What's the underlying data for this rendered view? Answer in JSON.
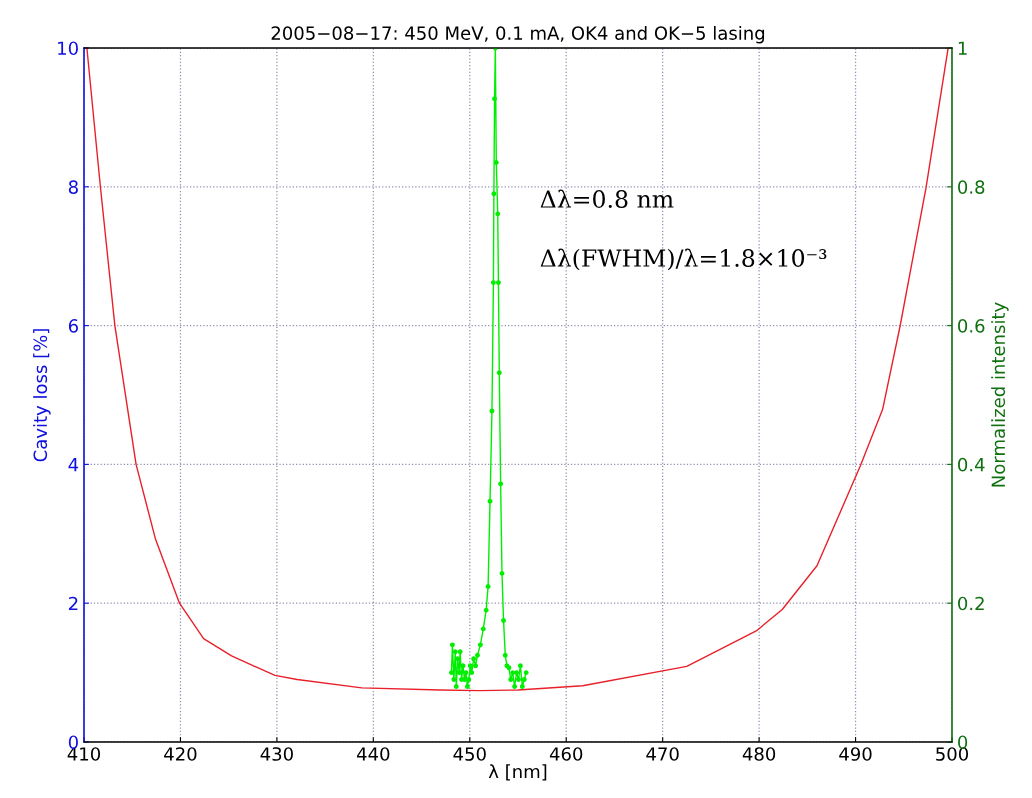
{
  "chart_data": {
    "type": "line",
    "title": "2005−08−17: 450 MeV, 0.1 mA, OK4 and OK−5 lasing",
    "xlabel": "λ [nm]",
    "ylabel": "Cavity loss [%]",
    "y2label": "Normalized intensity",
    "xlim": [
      410,
      500
    ],
    "xticks": [
      410,
      420,
      430,
      440,
      450,
      460,
      470,
      480,
      490,
      500
    ],
    "ylim": [
      0,
      10
    ],
    "yticks": [
      0,
      2,
      4,
      6,
      8,
      10
    ],
    "y2lim": [
      0,
      1
    ],
    "y2ticks": [
      0,
      0.2,
      0.4,
      0.6,
      0.8,
      1
    ],
    "grid": true,
    "annotations": [
      "Δλ=0.8 nm",
      "Δλ(FWHM)/λ=1.8×10⁻³"
    ],
    "series": [
      {
        "color": "#e8202a",
        "marker": "none",
        "x": [
          410.3,
          411.7,
          413.2,
          415.4,
          417.4,
          419.9,
          422.4,
          425.3,
          429.8,
          432.1,
          438.8,
          446.9,
          451,
          455,
          461.7,
          472.5,
          479.7,
          482.4,
          486.0,
          490.5,
          492.8,
          494.6,
          497.3,
          499.6
        ],
        "values": [
          10,
          8,
          6,
          4,
          2.93,
          2,
          1.49,
          1.24,
          0.96,
          0.9,
          0.78,
          0.75,
          0.74,
          0.75,
          0.81,
          1.09,
          1.6,
          1.91,
          2.54,
          3.98,
          4.79,
          5.98,
          7.98,
          10
        ]
      },
      {
        "color": "#00ee00",
        "marker": "circle",
        "axis": "y2",
        "x": [
          448.1,
          448.2,
          448.35,
          448.5,
          448.6,
          448.75,
          448.9,
          449.0,
          449.15,
          449.3,
          449.45,
          449.6,
          449.75,
          449.9,
          450.05,
          450.2,
          450.4,
          450.6,
          450.8,
          451.1,
          451.4,
          451.7,
          451.9,
          452.1,
          452.3,
          452.45,
          452.5,
          452.57,
          452.65,
          452.75,
          452.9,
          452.97,
          453.06,
          453.2,
          453.34,
          453.5,
          453.68,
          453.85,
          454.06,
          454.25,
          454.45,
          454.65,
          454.85,
          455.05,
          455.25,
          455.45,
          455.65,
          455.85
        ],
        "values": [
          0.1,
          0.14,
          0.09,
          0.13,
          0.08,
          0.12,
          0.1,
          0.13,
          0.09,
          0.11,
          0.09,
          0.1,
          0.08,
          0.09,
          0.11,
          0.1,
          0.12,
          0.11,
          0.125,
          0.14,
          0.163,
          0.19,
          0.224,
          0.347,
          0.477,
          0.662,
          0.79,
          0.927,
          1.0,
          0.835,
          0.761,
          0.662,
          0.532,
          0.372,
          0.243,
          0.175,
          0.125,
          0.11,
          0.107,
          0.09,
          0.1,
          0.08,
          0.1,
          0.09,
          0.11,
          0.08,
          0.09,
          0.1
        ]
      }
    ]
  }
}
